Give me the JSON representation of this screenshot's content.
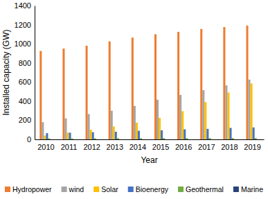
{
  "chart_data": {
    "type": "bar",
    "x_label": "Year",
    "y_label": "Installed capacity (GW)",
    "categories": [
      "2010",
      "2011",
      "2012",
      "2013",
      "2014",
      "2015",
      "2016",
      "2017",
      "2018",
      "2019"
    ],
    "series": [
      {
        "name": "Hydropower",
        "color": "#ed7d31",
        "values": [
          925,
          950,
          980,
          1025,
          1065,
          1100,
          1125,
          1155,
          1175,
          1190
        ]
      },
      {
        "name": "wind",
        "color": "#a5a5a5",
        "values": [
          180,
          220,
          265,
          300,
          350,
          415,
          465,
          515,
          565,
          625
        ]
      },
      {
        "name": "Solar",
        "color": "#ffc000",
        "values": [
          40,
          70,
          100,
          135,
          175,
          225,
          295,
          390,
          490,
          585
        ]
      },
      {
        "name": "Bioenergy",
        "color": "#4472c4",
        "values": [
          65,
          70,
          75,
          80,
          90,
          95,
          105,
          110,
          120,
          125
        ]
      },
      {
        "name": "Geothermal",
        "color": "#70ad47",
        "values": [
          10,
          10,
          11,
          12,
          12,
          13,
          13,
          14,
          14,
          14
        ]
      },
      {
        "name": "Marine",
        "color": "#264478",
        "values": [
          0.5,
          0.5,
          0.5,
          0.5,
          0.5,
          0.5,
          0.5,
          0.5,
          0.5,
          0.5
        ]
      }
    ],
    "ylim": [
      0,
      1400
    ],
    "yticks": [
      0,
      200,
      400,
      600,
      800,
      1000,
      1200,
      1400
    ],
    "grid": false,
    "legend": "bottom"
  }
}
